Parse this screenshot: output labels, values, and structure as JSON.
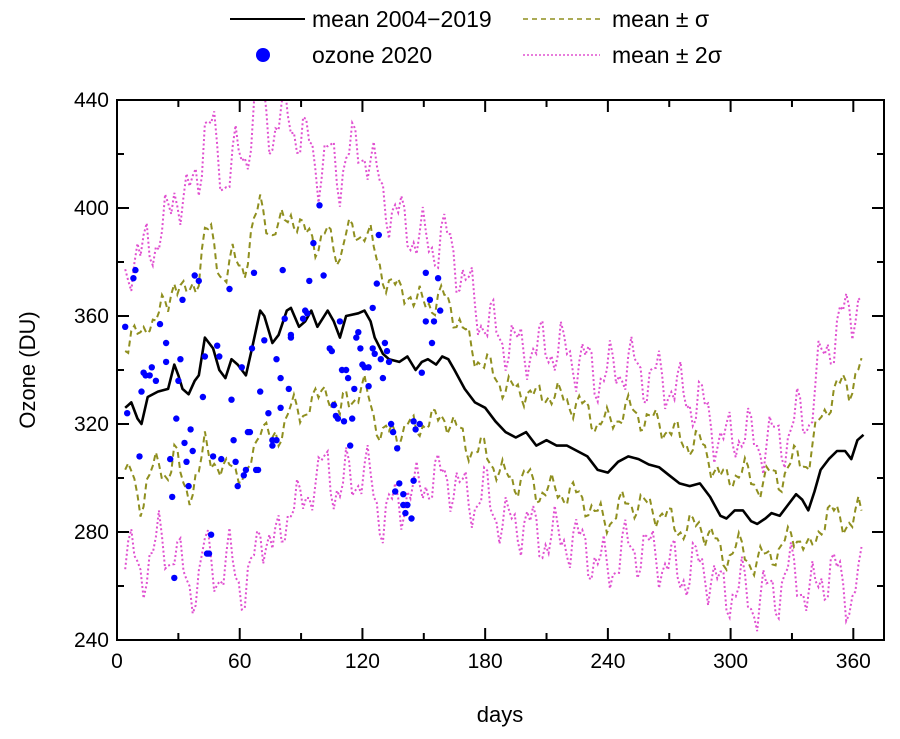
{
  "chart_data": {
    "type": "line",
    "title": "",
    "xlabel": "days",
    "ylabel": "Ozone (DU)",
    "xlim": [
      0,
      375
    ],
    "ylim": [
      240,
      440
    ],
    "x_ticks": [
      0,
      60,
      120,
      180,
      240,
      300,
      360
    ],
    "y_ticks": [
      240,
      280,
      320,
      360,
      400,
      440
    ],
    "grid": false,
    "legend_position": "top",
    "legend": {
      "mean": "mean 2004−2019",
      "ozone": "ozone 2020",
      "sigma1": "mean ± σ",
      "sigma2": "mean ± 2σ"
    },
    "colors": {
      "mean": "#000000",
      "ozone": "#0000ff",
      "sigma1": "#8f8f1f",
      "sigma2": "#e050d0"
    },
    "mean_series": {
      "name": "mean 2004−2019",
      "x": [
        4,
        7,
        10,
        12,
        15,
        20,
        25,
        28,
        30,
        32,
        35,
        38,
        40,
        43,
        47,
        50,
        53,
        56,
        59,
        63,
        66,
        70,
        72,
        76,
        79,
        83,
        85,
        89,
        92,
        95,
        98,
        103,
        106,
        109,
        112,
        118,
        121,
        124,
        126,
        130,
        133,
        138,
        142,
        146,
        149,
        152,
        156,
        159,
        162,
        165,
        170,
        175,
        180,
        185,
        190,
        195,
        200,
        205,
        210,
        215,
        220,
        225,
        230,
        235,
        240,
        245,
        250,
        255,
        260,
        265,
        270,
        275,
        280,
        285,
        290,
        295,
        298,
        302,
        306,
        310,
        313,
        317,
        320,
        324,
        328,
        332,
        335,
        338,
        341,
        344,
        348,
        352,
        356,
        359,
        362,
        365
      ],
      "y": [
        326,
        328,
        322,
        320,
        330,
        332,
        333,
        342,
        338,
        333,
        331,
        336,
        338,
        352,
        348,
        340,
        337,
        344,
        342,
        338,
        348,
        362,
        360,
        350,
        353,
        362,
        363,
        356,
        358,
        362,
        356,
        362,
        358,
        352,
        360,
        361,
        362,
        358,
        352,
        346,
        344,
        343,
        345,
        340,
        343,
        344,
        342,
        345,
        344,
        340,
        333,
        328,
        326,
        321,
        317,
        315,
        317,
        312,
        314,
        312,
        312,
        310,
        308,
        303,
        302,
        306,
        308,
        307,
        305,
        304,
        301,
        298,
        297,
        298,
        293,
        286,
        285,
        288,
        288,
        284,
        283,
        285,
        287,
        286,
        290,
        294,
        292,
        288,
        295,
        303,
        307,
        310,
        310,
        307,
        314,
        316
      ]
    },
    "sigma_series": {
      "x": [
        4,
        10,
        20,
        30,
        40,
        45,
        55,
        65,
        70,
        80,
        90,
        100,
        110,
        120,
        130,
        135,
        145,
        150,
        160,
        170,
        180,
        190,
        200,
        210,
        220,
        230,
        240,
        250,
        260,
        270,
        280,
        290,
        300,
        310,
        320,
        330,
        340,
        350,
        360,
        365
      ],
      "sigma": [
        24,
        30,
        28,
        34,
        38,
        40,
        36,
        42,
        40,
        38,
        34,
        28,
        30,
        30,
        30,
        27,
        24,
        22,
        22,
        20,
        16,
        17,
        16,
        18,
        17,
        17,
        18,
        17,
        16,
        17,
        16,
        14,
        14,
        15,
        14,
        13,
        18,
        22,
        27,
        26
      ]
    },
    "ozone_2020": {
      "name": "ozone 2020",
      "points": [
        [
          4,
          356
        ],
        [
          5,
          324
        ],
        [
          8,
          374
        ],
        [
          9,
          377
        ],
        [
          11,
          308
        ],
        [
          12,
          332
        ],
        [
          13,
          339
        ],
        [
          14,
          338
        ],
        [
          16,
          338
        ],
        [
          17,
          341
        ],
        [
          19,
          336
        ],
        [
          21,
          357
        ],
        [
          24,
          343
        ],
        [
          24,
          350
        ],
        [
          26,
          307
        ],
        [
          27,
          293
        ],
        [
          28,
          263
        ],
        [
          29,
          322
        ],
        [
          30,
          336
        ],
        [
          31,
          344
        ],
        [
          32,
          366
        ],
        [
          33,
          313
        ],
        [
          34,
          306
        ],
        [
          35,
          297
        ],
        [
          36,
          318
        ],
        [
          37,
          310
        ],
        [
          38,
          375
        ],
        [
          40,
          373
        ],
        [
          42,
          330
        ],
        [
          43,
          345
        ],
        [
          44,
          272
        ],
        [
          45,
          272
        ],
        [
          46,
          279
        ],
        [
          47,
          308
        ],
        [
          49,
          349
        ],
        [
          50,
          345
        ],
        [
          51,
          307
        ],
        [
          55,
          370
        ],
        [
          56,
          329
        ],
        [
          57,
          314
        ],
        [
          58,
          306
        ],
        [
          59,
          297
        ],
        [
          61,
          341
        ],
        [
          62,
          301
        ],
        [
          63,
          303
        ],
        [
          64,
          317
        ],
        [
          65,
          317
        ],
        [
          66,
          348
        ],
        [
          67,
          376
        ],
        [
          68,
          303
        ],
        [
          69,
          303
        ],
        [
          70,
          332
        ],
        [
          72,
          351
        ],
        [
          74,
          324
        ],
        [
          76,
          314
        ],
        [
          76,
          312
        ],
        [
          78,
          314
        ],
        [
          78,
          344
        ],
        [
          80,
          326
        ],
        [
          80,
          337
        ],
        [
          81,
          377
        ],
        [
          82,
          359
        ],
        [
          84,
          333
        ],
        [
          85,
          352
        ],
        [
          85,
          353
        ],
        [
          91,
          359
        ],
        [
          92,
          362
        ],
        [
          93,
          361
        ],
        [
          94,
          373
        ],
        [
          96,
          387
        ],
        [
          99,
          401
        ],
        [
          101,
          375
        ],
        [
          104,
          348
        ],
        [
          105,
          347
        ],
        [
          106,
          327
        ],
        [
          107,
          323
        ],
        [
          108,
          322
        ],
        [
          109,
          358
        ],
        [
          110,
          340
        ],
        [
          111,
          321
        ],
        [
          112,
          340
        ],
        [
          113,
          337
        ],
        [
          114,
          312
        ],
        [
          115,
          322
        ],
        [
          116,
          333
        ],
        [
          117,
          352
        ],
        [
          118,
          354
        ],
        [
          119,
          348
        ],
        [
          120,
          342
        ],
        [
          121,
          341
        ],
        [
          123,
          341
        ],
        [
          123,
          334
        ],
        [
          125,
          363
        ],
        [
          125,
          348
        ],
        [
          126,
          346
        ],
        [
          127,
          372
        ],
        [
          128,
          390
        ],
        [
          129,
          344
        ],
        [
          130,
          337
        ],
        [
          131,
          350
        ],
        [
          132,
          347
        ],
        [
          133,
          343
        ],
        [
          134,
          320
        ],
        [
          135,
          317
        ],
        [
          136,
          295
        ],
        [
          137,
          311
        ],
        [
          138,
          298
        ],
        [
          140,
          294
        ],
        [
          140,
          290
        ],
        [
          141,
          287
        ],
        [
          142,
          290
        ],
        [
          144,
          285
        ],
        [
          145,
          299
        ],
        [
          145,
          321
        ],
        [
          146,
          318
        ],
        [
          148,
          320
        ],
        [
          149,
          339
        ],
        [
          151,
          358
        ],
        [
          151,
          376
        ],
        [
          153,
          366
        ],
        [
          154,
          350
        ],
        [
          155,
          358
        ],
        [
          157,
          374
        ],
        [
          158,
          362
        ]
      ]
    }
  }
}
